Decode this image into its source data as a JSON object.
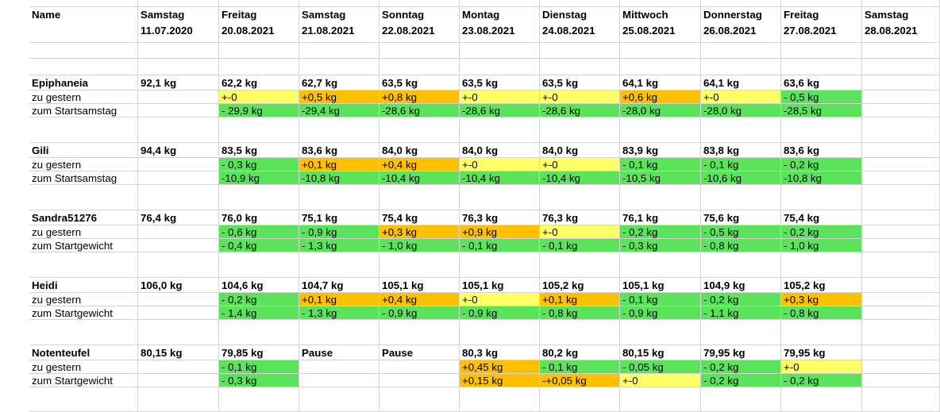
{
  "colors": {
    "green": "#5be35b",
    "yellow": "#ffff66",
    "orange": "#ffc000",
    "grid": "#d4d4d4"
  },
  "header": {
    "name_label": "Name",
    "days": [
      "Samstag",
      "Freitag",
      "Samstag",
      "Sonntag",
      "Montag",
      "Dienstag",
      "Mittwoch",
      "Donnerstag",
      "Freitag",
      "Samstag"
    ],
    "dates": [
      "11.07.2020",
      "20.08.2021",
      "21.08.2021",
      "22.08.2021",
      "23.08.2021",
      "24.08.2021",
      "25.08.2021",
      "26.08.2021",
      "27.08.2021",
      "28.08.2021"
    ]
  },
  "people": [
    {
      "name": "Epiphaneia",
      "weights": [
        "92,1 kg",
        "62,2 kg",
        "62,7 kg",
        "63,5 kg",
        "63,5 kg",
        "63,5 kg",
        "64,1 kg",
        "64,1 kg",
        "63,6 kg",
        ""
      ],
      "diff_label": "zu gestern",
      "diff": [
        {
          "text": "",
          "color": ""
        },
        {
          "text": "+-0",
          "color": "yellow"
        },
        {
          "text": "+0,5 kg",
          "color": "orange"
        },
        {
          "text": "+0,8 kg",
          "color": "orange"
        },
        {
          "text": "+-0",
          "color": "yellow"
        },
        {
          "text": "+-0",
          "color": "yellow"
        },
        {
          "text": "+0,6 kg",
          "color": "orange"
        },
        {
          "text": "+-0",
          "color": "yellow"
        },
        {
          "text": "- 0,5 kg",
          "color": "green"
        },
        {
          "text": "",
          "color": ""
        }
      ],
      "total_label": "zum Startsamstag",
      "total": [
        {
          "text": "",
          "color": ""
        },
        {
          "text": "- 29,9 kg",
          "color": "green"
        },
        {
          "text": "-29,4 kg",
          "color": "green"
        },
        {
          "text": "-28,6 kg",
          "color": "green"
        },
        {
          "text": "-28,6 kg",
          "color": "green"
        },
        {
          "text": "-28,6 kg",
          "color": "green"
        },
        {
          "text": "-28,0 kg",
          "color": "green"
        },
        {
          "text": "-28,0 kg",
          "color": "green"
        },
        {
          "text": "-28,5 kg",
          "color": "green"
        },
        {
          "text": "",
          "color": ""
        }
      ]
    },
    {
      "name": "Gili",
      "weights": [
        "94,4 kg",
        "83,5 kg",
        "83,6 kg",
        "84,0 kg",
        "84,0 kg",
        "84,0 kg",
        "83,9 kg",
        "83,8 kg",
        "83,6 kg",
        ""
      ],
      "diff_label": "zu gestern",
      "diff": [
        {
          "text": "",
          "color": ""
        },
        {
          "text": "- 0,3 kg",
          "color": "green"
        },
        {
          "text": "+0,1 kg",
          "color": "orange"
        },
        {
          "text": "+0,4 kg",
          "color": "orange"
        },
        {
          "text": "+-0",
          "color": "yellow"
        },
        {
          "text": "+-0",
          "color": "yellow"
        },
        {
          "text": "- 0,1 kg",
          "color": "green"
        },
        {
          "text": "- 0,1 kg",
          "color": "green"
        },
        {
          "text": "- 0,2 kg",
          "color": "green"
        },
        {
          "text": "",
          "color": ""
        }
      ],
      "total_label": "zum Startsamstag",
      "total": [
        {
          "text": "",
          "color": ""
        },
        {
          "text": "-10,9 kg",
          "color": "green"
        },
        {
          "text": "-10,8 kg",
          "color": "green"
        },
        {
          "text": "-10,4 kg",
          "color": "green"
        },
        {
          "text": "-10,4 kg",
          "color": "green"
        },
        {
          "text": "-10,4 kg",
          "color": "green"
        },
        {
          "text": "-10,5 kg",
          "color": "green"
        },
        {
          "text": "-10,6 kg",
          "color": "green"
        },
        {
          "text": "-10,8 kg",
          "color": "green"
        },
        {
          "text": "",
          "color": ""
        }
      ]
    },
    {
      "name": "Sandra51276",
      "weights": [
        "76,4 kg",
        "76,0 kg",
        "75,1 kg",
        "75,4 kg",
        "76,3 kg",
        "76,3 kg",
        "76,1 kg",
        "75,6 kg",
        "75,4 kg",
        ""
      ],
      "diff_label": "zu gestern",
      "diff": [
        {
          "text": "",
          "color": ""
        },
        {
          "text": "- 0,6 kg",
          "color": "green"
        },
        {
          "text": "- 0,9 kg",
          "color": "green"
        },
        {
          "text": "+0,3 kg",
          "color": "orange"
        },
        {
          "text": "+0,9 kg",
          "color": "orange"
        },
        {
          "text": "+-0",
          "color": "yellow"
        },
        {
          "text": "- 0,2 kg",
          "color": "green"
        },
        {
          "text": "- 0,5 kg",
          "color": "green"
        },
        {
          "text": "- 0,2 kg",
          "color": "green"
        },
        {
          "text": "",
          "color": ""
        }
      ],
      "total_label": "zum Startgewicht",
      "total": [
        {
          "text": "",
          "color": ""
        },
        {
          "text": "- 0,4 kg",
          "color": "green"
        },
        {
          "text": "- 1,3 kg",
          "color": "green"
        },
        {
          "text": "- 1,0 kg",
          "color": "green"
        },
        {
          "text": "- 0,1 kg",
          "color": "green"
        },
        {
          "text": "- 0,1 kg",
          "color": "green"
        },
        {
          "text": "- 0,3 kg",
          "color": "green"
        },
        {
          "text": "- 0,8 kg",
          "color": "green"
        },
        {
          "text": "- 1,0 kg",
          "color": "green"
        },
        {
          "text": "",
          "color": ""
        }
      ]
    },
    {
      "name": "Heidi",
      "weights": [
        "106,0 kg",
        "104,6 kg",
        "104,7 kg",
        "105,1 kg",
        "105,1 kg",
        "105,2 kg",
        "105,1 kg",
        "104,9 kg",
        "105,2 kg",
        ""
      ],
      "diff_label": "zu gestern",
      "diff": [
        {
          "text": "",
          "color": ""
        },
        {
          "text": "- 0,2 kg",
          "color": "green"
        },
        {
          "text": "+0,1 kg",
          "color": "orange"
        },
        {
          "text": "+0,4 kg",
          "color": "orange"
        },
        {
          "text": "+-0",
          "color": "yellow"
        },
        {
          "text": "+0,1 kg",
          "color": "orange"
        },
        {
          "text": "- 0,1 kg",
          "color": "green"
        },
        {
          "text": "- 0,2 kg",
          "color": "green"
        },
        {
          "text": "+0,3 kg",
          "color": "orange"
        },
        {
          "text": "",
          "color": ""
        }
      ],
      "total_label": "zum Startgewicht",
      "total": [
        {
          "text": "",
          "color": ""
        },
        {
          "text": "- 1,4 kg",
          "color": "green"
        },
        {
          "text": "- 1,3 kg",
          "color": "green"
        },
        {
          "text": "- 0,9 kg",
          "color": "green"
        },
        {
          "text": "- 0,9 kg",
          "color": "green"
        },
        {
          "text": "- 0,8 kg",
          "color": "green"
        },
        {
          "text": "- 0,9 kg",
          "color": "green"
        },
        {
          "text": "- 1,1 kg",
          "color": "green"
        },
        {
          "text": "- 0,8 kg",
          "color": "green"
        },
        {
          "text": "",
          "color": ""
        }
      ]
    },
    {
      "name": "Notenteufel",
      "weights": [
        "80,15 kg",
        "79,85 kg",
        "Pause",
        "Pause",
        "80,3 kg",
        "80,2 kg",
        "80,15 kg",
        "79,95 kg",
        "79,95 kg",
        ""
      ],
      "diff_label": "zu gestern",
      "diff": [
        {
          "text": "",
          "color": ""
        },
        {
          "text": "- 0,1 kg",
          "color": "green"
        },
        {
          "text": "",
          "color": ""
        },
        {
          "text": "",
          "color": ""
        },
        {
          "text": "+0,45 kg",
          "color": "orange"
        },
        {
          "text": "- 0,1 kg",
          "color": "green"
        },
        {
          "text": "- 0,05 kg",
          "color": "green"
        },
        {
          "text": "- 0,2 kg",
          "color": "green"
        },
        {
          "text": "+-0",
          "color": "yellow"
        },
        {
          "text": "",
          "color": ""
        }
      ],
      "total_label": "zum Startgewicht",
      "total": [
        {
          "text": "",
          "color": ""
        },
        {
          "text": "- 0,3 kg",
          "color": "green"
        },
        {
          "text": "",
          "color": ""
        },
        {
          "text": "",
          "color": ""
        },
        {
          "text": "+0,15 kg",
          "color": "orange"
        },
        {
          "text": "-+0,05 kg",
          "color": "orange"
        },
        {
          "text": "+-0",
          "color": "yellow"
        },
        {
          "text": "- 0,2 kg",
          "color": "green"
        },
        {
          "text": "- 0,2 kg",
          "color": "green"
        },
        {
          "text": "",
          "color": ""
        }
      ]
    }
  ]
}
